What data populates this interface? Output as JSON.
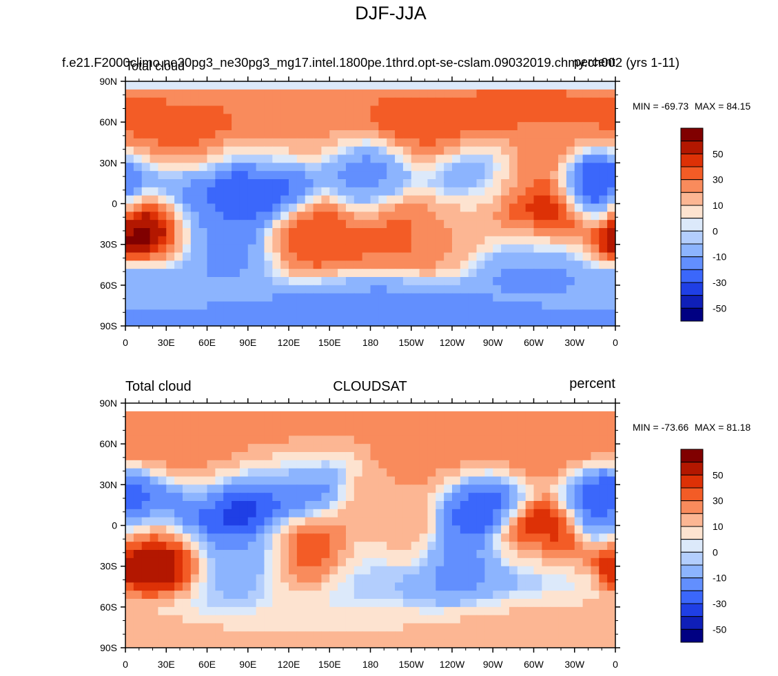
{
  "title": "DJF-JJA",
  "panels": [
    {
      "case_title": "f.e21.F2000climo.ne30pg3_ne30pg3_mg17.intel.1800pe.1thrd.opt-se-cslam.09032019.chmy.ch002 (yrs 1-11)",
      "left_label": "Total cloud",
      "center_label": "",
      "right_label": "percent",
      "min_label": "MIN = -69.73",
      "max_label": "MAX =  84.15"
    },
    {
      "case_title": "",
      "left_label": "Total cloud",
      "center_label": "CLOUDSAT",
      "right_label": "percent",
      "min_label": "MIN = -73.66",
      "max_label": "MAX =  81.18"
    }
  ],
  "colorbar": {
    "labels": [
      "50",
      "30",
      "10",
      "0",
      "-10",
      "-30",
      "-50"
    ],
    "colors": [
      "#800000",
      "#b31700",
      "#dd3106",
      "#f35c26",
      "#f98b5c",
      "#fcb693",
      "#fde3d0",
      "#dce9fa",
      "#b3cefd",
      "#8cb4fe",
      "#628ffe",
      "#3b67fb",
      "#1f3fe5",
      "#0f1fb8",
      "#000082"
    ]
  },
  "chart_data": [
    {
      "type": "heatmap",
      "title": "Total cloud",
      "units": "percent",
      "x_ticks": [
        "0",
        "30E",
        "60E",
        "90E",
        "120E",
        "150E",
        "180",
        "150W",
        "120W",
        "90W",
        "60W",
        "30W",
        "0"
      ],
      "y_ticks": [
        "90N",
        "60N",
        "30N",
        "0",
        "30S",
        "60S",
        "90S"
      ],
      "xlim": [
        0,
        360
      ],
      "ylim": [
        -90,
        90
      ],
      "min": -69.73,
      "max": 84.15,
      "features": [
        {
          "lon": 20,
          "lat": -15,
          "value": 75
        },
        {
          "lon": 50,
          "lat": 42,
          "value": 45
        },
        {
          "lon": 30,
          "lat": 45,
          "value": 35
        },
        {
          "lon": 100,
          "lat": 42,
          "value": 30
        },
        {
          "lon": 130,
          "lat": 55,
          "value": 25
        },
        {
          "lon": 230,
          "lat": 50,
          "value": 45
        },
        {
          "lon": 300,
          "lat": 38,
          "value": 35
        },
        {
          "lon": 270,
          "lat": 8,
          "value": 25
        },
        {
          "lon": 305,
          "lat": -12,
          "value": 60
        },
        {
          "lon": 140,
          "lat": -22,
          "value": 40
        },
        {
          "lon": 200,
          "lat": -20,
          "value": 35
        },
        {
          "lon": 240,
          "lat": -15,
          "value": 20
        },
        {
          "lon": 40,
          "lat": 15,
          "value": -40
        },
        {
          "lon": 85,
          "lat": 20,
          "value": -50
        },
        {
          "lon": 110,
          "lat": 15,
          "value": -40
        },
        {
          "lon": 180,
          "lat": 20,
          "value": -25
        },
        {
          "lon": 255,
          "lat": 22,
          "value": -40
        },
        {
          "lon": 350,
          "lat": 15,
          "value": -45
        },
        {
          "lon": 60,
          "lat": -10,
          "value": -30
        },
        {
          "lon": 70,
          "lat": -35,
          "value": -25
        },
        {
          "lon": 300,
          "lat": -35,
          "value": -30
        },
        {
          "lon": 180,
          "lat": -80,
          "value": -25
        },
        {
          "lon": 20,
          "lat": -70,
          "value": -20
        }
      ]
    },
    {
      "type": "heatmap",
      "title": "CLOUDSAT",
      "units": "percent",
      "x_ticks": [
        "0",
        "30E",
        "60E",
        "90E",
        "120E",
        "150E",
        "180",
        "150W",
        "120W",
        "90W",
        "60W",
        "30W",
        "0"
      ],
      "y_ticks": [
        "90N",
        "60N",
        "30N",
        "0",
        "30S",
        "60S",
        "90S"
      ],
      "xlim": [
        0,
        360
      ],
      "ylim": [
        -90,
        90
      ],
      "min": -73.66,
      "max": 81.18,
      "features": [
        {
          "lon": 20,
          "lat": -15,
          "value": 70
        },
        {
          "lon": 305,
          "lat": -12,
          "value": 65
        },
        {
          "lon": 135,
          "lat": -22,
          "value": 40
        },
        {
          "lon": 30,
          "lat": 60,
          "value": 30
        },
        {
          "lon": 60,
          "lat": 40,
          "value": 35
        },
        {
          "lon": 110,
          "lat": 55,
          "value": 25
        },
        {
          "lon": 230,
          "lat": 50,
          "value": 30
        },
        {
          "lon": 300,
          "lat": 55,
          "value": 30
        },
        {
          "lon": 200,
          "lat": 20,
          "value": 20
        },
        {
          "lon": 190,
          "lat": -10,
          "value": 15
        },
        {
          "lon": 80,
          "lat": 18,
          "value": -55
        },
        {
          "lon": 45,
          "lat": 10,
          "value": -35
        },
        {
          "lon": 10,
          "lat": 15,
          "value": -40
        },
        {
          "lon": 260,
          "lat": 15,
          "value": -40
        },
        {
          "lon": 355,
          "lat": 12,
          "value": -35
        },
        {
          "lon": 300,
          "lat": -30,
          "value": -25
        },
        {
          "lon": 250,
          "lat": -35,
          "value": -25
        },
        {
          "lon": 90,
          "lat": -25,
          "value": -20
        },
        {
          "lon": 180,
          "lat": -40,
          "value": -15
        },
        {
          "lon": 120,
          "lat": 30,
          "value": -30
        },
        {
          "lon": 180,
          "lat": -75,
          "value": 10
        },
        {
          "lon": 300,
          "lat": -70,
          "value": 20
        }
      ]
    }
  ]
}
